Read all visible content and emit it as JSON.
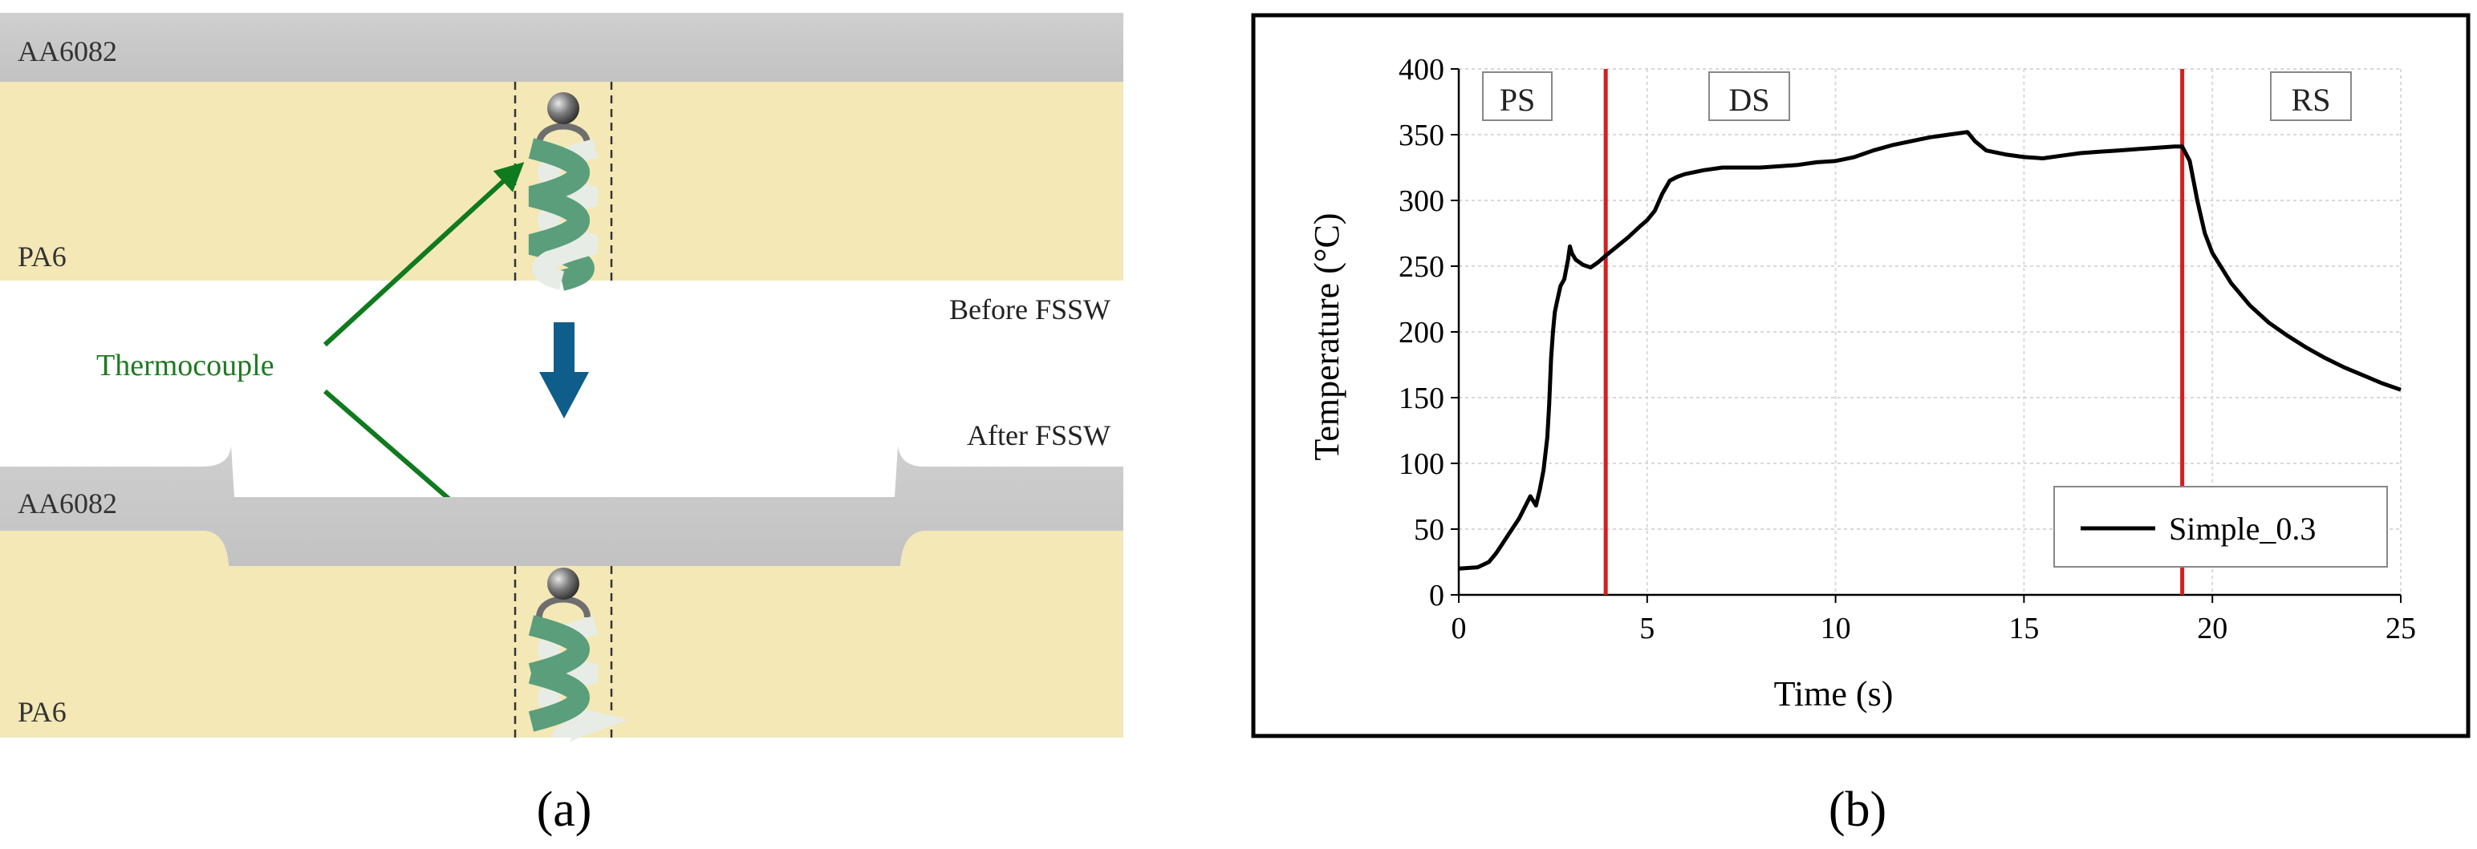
{
  "panel_a": {
    "top_label_metal": "AA6082",
    "top_label_polymer": "PA6",
    "before_label": "Before FSSW",
    "after_label": "After FSSW",
    "thermocouple_label": "Thermocouple",
    "bottom_label_metal": "AA6082",
    "bottom_label_polymer": "PA6",
    "caption": "(a)",
    "colors": {
      "metal": "#c7c7c7",
      "polymer": "#f3e8b6",
      "arrow_green": "#0f7a1e",
      "thermocouple_text": "#1e7a22",
      "down_arrow": "#0f5d8a",
      "twist_green": "#5a9e7c",
      "twist_light": "#e8ece6"
    }
  },
  "panel_b": {
    "caption": "(b)",
    "phase_labels": [
      "PS",
      "DS",
      "RS"
    ],
    "colors": {
      "series": "#000000",
      "phase_lines": "#d21f1f",
      "grid": "#d9d9d9",
      "frame": "#000000"
    }
  },
  "chart_data": {
    "type": "line",
    "title": "",
    "xlabel": "Time (s)",
    "ylabel": "Temperature (°C)",
    "xlim": [
      0,
      25
    ],
    "ylim": [
      0,
      400
    ],
    "xticks": [
      0,
      5,
      10,
      15,
      20,
      25
    ],
    "yticks": [
      0,
      50,
      100,
      150,
      200,
      250,
      300,
      350,
      400
    ],
    "grid": true,
    "legend_position": "bottom-right",
    "vlines": [
      3.9,
      19.2
    ],
    "series": [
      {
        "name": "Simple_0.3",
        "x": [
          0,
          0.5,
          0.8,
          1.0,
          1.3,
          1.6,
          1.9,
          2.05,
          2.15,
          2.25,
          2.35,
          2.4,
          2.45,
          2.5,
          2.55,
          2.6,
          2.7,
          2.8,
          2.9,
          2.95,
          3.0,
          3.1,
          3.3,
          3.5,
          3.7,
          3.9,
          4.2,
          4.5,
          4.8,
          5.0,
          5.2,
          5.4,
          5.6,
          5.8,
          6.0,
          6.5,
          7.0,
          7.5,
          8.0,
          8.5,
          9.0,
          9.5,
          10.0,
          10.5,
          11.0,
          11.5,
          12.0,
          12.5,
          13.0,
          13.5,
          13.7,
          14.0,
          14.5,
          15.0,
          15.5,
          16.0,
          16.5,
          17.0,
          17.5,
          18.0,
          18.5,
          19.0,
          19.2,
          19.4,
          19.6,
          19.8,
          20.0,
          20.5,
          21.0,
          21.5,
          22.0,
          22.5,
          23.0,
          23.5,
          24.0,
          24.5,
          25.0
        ],
        "y": [
          20,
          21,
          25,
          32,
          45,
          58,
          75,
          68,
          80,
          95,
          120,
          145,
          180,
          200,
          215,
          222,
          235,
          240,
          255,
          265,
          260,
          255,
          251,
          249,
          253,
          258,
          265,
          272,
          280,
          285,
          292,
          305,
          315,
          318,
          320,
          323,
          325,
          325,
          325,
          326,
          327,
          329,
          330,
          333,
          338,
          342,
          345,
          348,
          350,
          352,
          345,
          338,
          335,
          333,
          332,
          334,
          336,
          337,
          338,
          339,
          340,
          341,
          341,
          330,
          300,
          275,
          260,
          237,
          220,
          207,
          197,
          188,
          180,
          173,
          167,
          161,
          156
        ]
      }
    ]
  }
}
